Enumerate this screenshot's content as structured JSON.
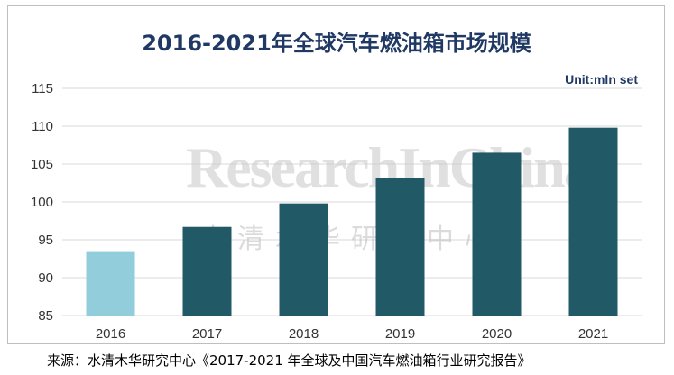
{
  "chart_data": {
    "type": "bar",
    "title": "2016-2021年全球汽车燃油箱市场规模",
    "unit_label": "Unit:mln set",
    "categories": [
      "2016",
      "2017",
      "2018",
      "2019",
      "2020",
      "2021"
    ],
    "values": [
      93.5,
      96.7,
      99.8,
      103.2,
      106.5,
      109.8
    ],
    "ylim": [
      85,
      115
    ],
    "yticks": [
      85,
      90,
      95,
      100,
      105,
      110,
      115
    ],
    "grid": true,
    "bar_colors": [
      "#92cddc",
      "#215967",
      "#215967",
      "#215967",
      "#215967",
      "#215967"
    ]
  },
  "watermark": {
    "text_en": "ResearchInChina",
    "text_cn": "水清木华研究中心"
  },
  "source_note": "来源：水清木华研究中心《2017-2021 年全球及中国汽车燃油箱行业研究报告》",
  "colors": {
    "title": "#1f3864",
    "grid": "#d9d9d9"
  }
}
